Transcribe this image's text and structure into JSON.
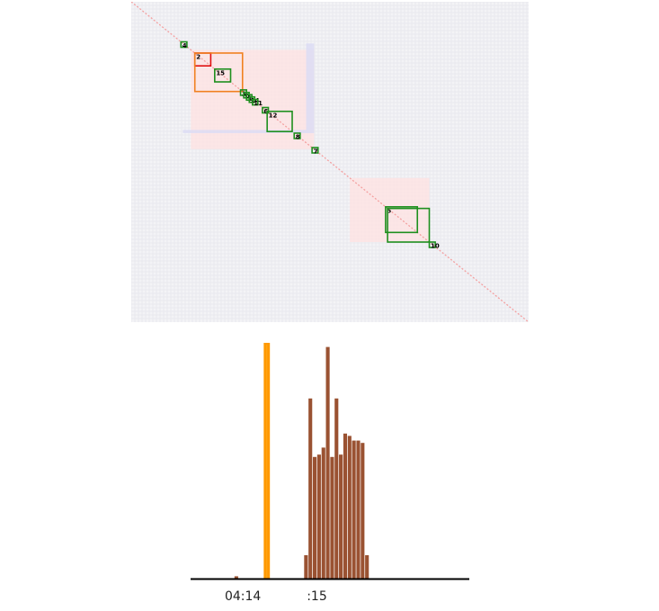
{
  "colors": {
    "matrix_bg": "#f3f3f6",
    "diag": "#f4a0a0",
    "positive": "#fde3e3",
    "negative": "#dcdcf5",
    "box_green": "#1e8f1e",
    "box_orange": "#f08020",
    "box_red": "#e01010",
    "bar": "#9a5232",
    "bar_highlight": "#ff9900",
    "axis": "#000000"
  },
  "chart_data": [
    {
      "type": "heatmap",
      "title": "",
      "shading": [
        {
          "x0": 0.15,
          "x1": 0.46,
          "y0": 0.15,
          "y1": 0.46,
          "kind": "positive"
        },
        {
          "x0": 0.55,
          "x1": 0.75,
          "y0": 0.55,
          "y1": 0.75,
          "kind": "positive"
        },
        {
          "x0": 0.13,
          "x1": 0.46,
          "y0": 0.4,
          "y1": 0.41,
          "kind": "negative"
        },
        {
          "x0": 0.44,
          "x1": 0.46,
          "y0": 0.13,
          "y1": 0.4,
          "kind": "negative"
        }
      ],
      "boxes": [
        {
          "label": "4",
          "start": 0.125,
          "end": 0.14,
          "color": "green"
        },
        {
          "label": "2",
          "start": 0.16,
          "end": 0.2,
          "color": "red"
        },
        {
          "label": "",
          "start": 0.16,
          "end": 0.28,
          "color": "orange"
        },
        {
          "label": "15",
          "start": 0.21,
          "end": 0.25,
          "color": "green"
        },
        {
          "label": "3",
          "start": 0.275,
          "end": 0.29,
          "color": "green"
        },
        {
          "label": "0",
          "start": 0.283,
          "end": 0.296,
          "color": "green"
        },
        {
          "label": "1",
          "start": 0.29,
          "end": 0.3,
          "color": "green"
        },
        {
          "label": "14",
          "start": 0.297,
          "end": 0.31,
          "color": "green"
        },
        {
          "label": "11",
          "start": 0.305,
          "end": 0.318,
          "color": "green"
        },
        {
          "label": "6",
          "start": 0.33,
          "end": 0.345,
          "color": "green"
        },
        {
          "label": "12",
          "start": 0.342,
          "end": 0.405,
          "color": "green"
        },
        {
          "label": "8",
          "start": 0.41,
          "end": 0.425,
          "color": "green"
        },
        {
          "label": "7",
          "start": 0.455,
          "end": 0.47,
          "color": "green"
        },
        {
          "label": "5",
          "start": 0.64,
          "end": 0.72,
          "color": "green"
        },
        {
          "label": "",
          "start": 0.645,
          "end": 0.75,
          "color": "green"
        },
        {
          "label": "10",
          "start": 0.75,
          "end": 0.765,
          "color": "green"
        }
      ]
    },
    {
      "type": "bar",
      "title": "",
      "xlabel": "",
      "ylabel": "",
      "ylim": [
        0,
        100
      ],
      "tick_labels": [
        {
          "text": "04:14",
          "index": 12
        },
        {
          "text": ":15",
          "index": 29
        }
      ],
      "highlight_index": 17,
      "values": [
        0,
        0,
        0,
        0,
        0,
        0,
        0,
        0,
        0,
        0,
        1,
        0,
        0,
        0,
        0,
        0,
        0,
        0,
        0,
        0,
        0,
        0,
        0,
        0,
        0,
        0,
        10,
        77,
        52,
        53,
        56,
        99,
        52,
        77,
        53,
        62,
        61,
        59,
        59,
        58,
        10,
        0,
        0,
        0,
        0,
        0,
        0,
        0,
        0,
        0,
        0,
        0,
        0,
        0,
        0,
        0,
        0,
        0,
        0,
        0,
        0,
        0,
        0,
        0
      ]
    }
  ]
}
